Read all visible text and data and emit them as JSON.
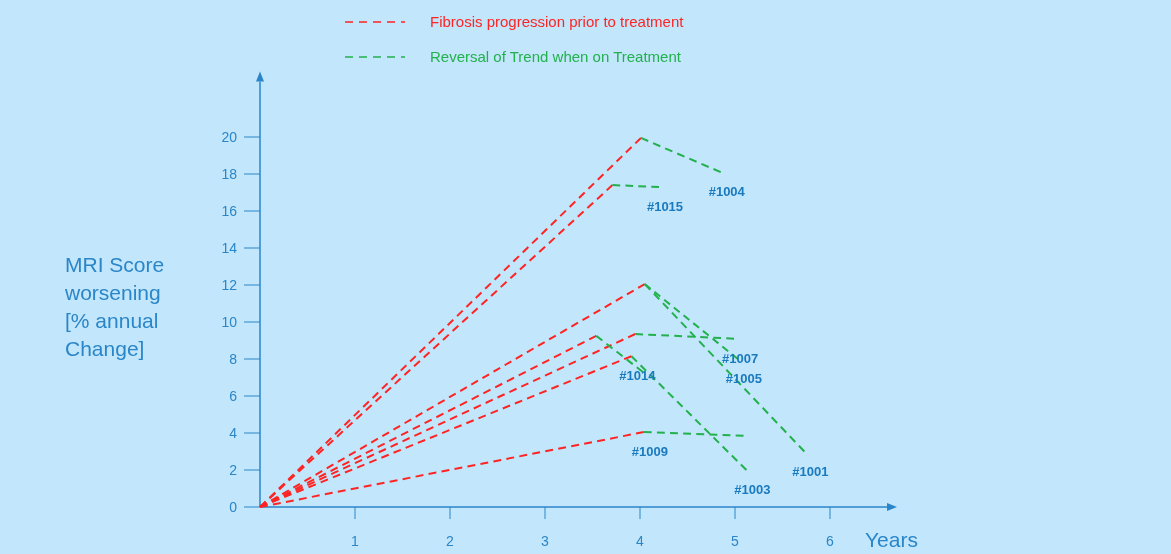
{
  "chart_data": {
    "type": "line",
    "xlabel": "Years",
    "ylabel": "MRI Score\nworsening\n[% annual\nChange]",
    "xlim": [
      0,
      6.6
    ],
    "ylim": [
      0,
      23
    ],
    "xticks": [
      1,
      2,
      3,
      4,
      5,
      6
    ],
    "yticks": [
      0,
      2,
      4,
      6,
      8,
      10,
      12,
      14,
      16,
      18,
      20
    ],
    "line_style": "dashed",
    "legend": "top",
    "grid": false,
    "series": [
      {
        "name": "Fibrosis progression prior to treatment",
        "color": "#ff2424",
        "x": [
          0,
          4.01
        ],
        "values": [
          0,
          19.95
        ]
      },
      {
        "color": "#ff2424",
        "x": [
          0,
          3.71
        ],
        "values": [
          0,
          17.4
        ]
      },
      {
        "color": "#ff2424",
        "x": [
          0,
          4.05
        ],
        "values": [
          0,
          12.05
        ]
      },
      {
        "color": "#ff2424",
        "x": [
          0,
          3.95
        ],
        "values": [
          0,
          9.35
        ]
      },
      {
        "color": "#ff2424",
        "x": [
          0,
          3.54
        ],
        "values": [
          0,
          9.25
        ]
      },
      {
        "color": "#ff2424",
        "x": [
          0,
          3.91
        ],
        "values": [
          0,
          8.15
        ]
      },
      {
        "color": "#ff2424",
        "x": [
          0,
          4.04
        ],
        "values": [
          0,
          4.05
        ]
      },
      {
        "name": "Reversal of Trend when on Treatment",
        "color": "#22b14c",
        "x": [
          4.01,
          4.85
        ],
        "values": [
          19.95,
          18.1
        ]
      },
      {
        "color": "#22b14c",
        "x": [
          3.71,
          4.2
        ],
        "values": [
          17.4,
          17.3
        ]
      },
      {
        "color": "#22b14c",
        "x": [
          4.05,
          5.03
        ],
        "values": [
          12.05,
          8.0
        ]
      },
      {
        "color": "#22b14c",
        "x": [
          4.05,
          5.73
        ],
        "values": [
          12.05,
          3.0
        ]
      },
      {
        "color": "#22b14c",
        "x": [
          3.95,
          4.99
        ],
        "values": [
          9.35,
          9.1
        ]
      },
      {
        "color": "#22b14c",
        "x": [
          3.54,
          4.03
        ],
        "values": [
          9.25,
          7.3
        ]
      },
      {
        "color": "#22b14c",
        "x": [
          3.91,
          5.12
        ],
        "values": [
          8.15,
          2.0
        ]
      },
      {
        "color": "#22b14c",
        "x": [
          4.04,
          5.09
        ],
        "values": [
          4.05,
          3.85
        ]
      }
    ],
    "annotations": [
      {
        "text": "#1004",
        "x": 4.85,
        "y": 18.1
      },
      {
        "text": "#1015",
        "x": 4.2,
        "y": 17.3
      },
      {
        "text": "#1007",
        "x": 4.99,
        "y": 9.1
      },
      {
        "text": "#1005",
        "x": 5.03,
        "y": 8.0
      },
      {
        "text": "#1014",
        "x": 3.91,
        "y": 8.15
      },
      {
        "text": "#1009",
        "x": 4.04,
        "y": 4.05
      },
      {
        "text": "#1003",
        "x": 5.12,
        "y": 2.0
      },
      {
        "text": "#1001",
        "x": 5.73,
        "y": 3.0
      }
    ]
  }
}
